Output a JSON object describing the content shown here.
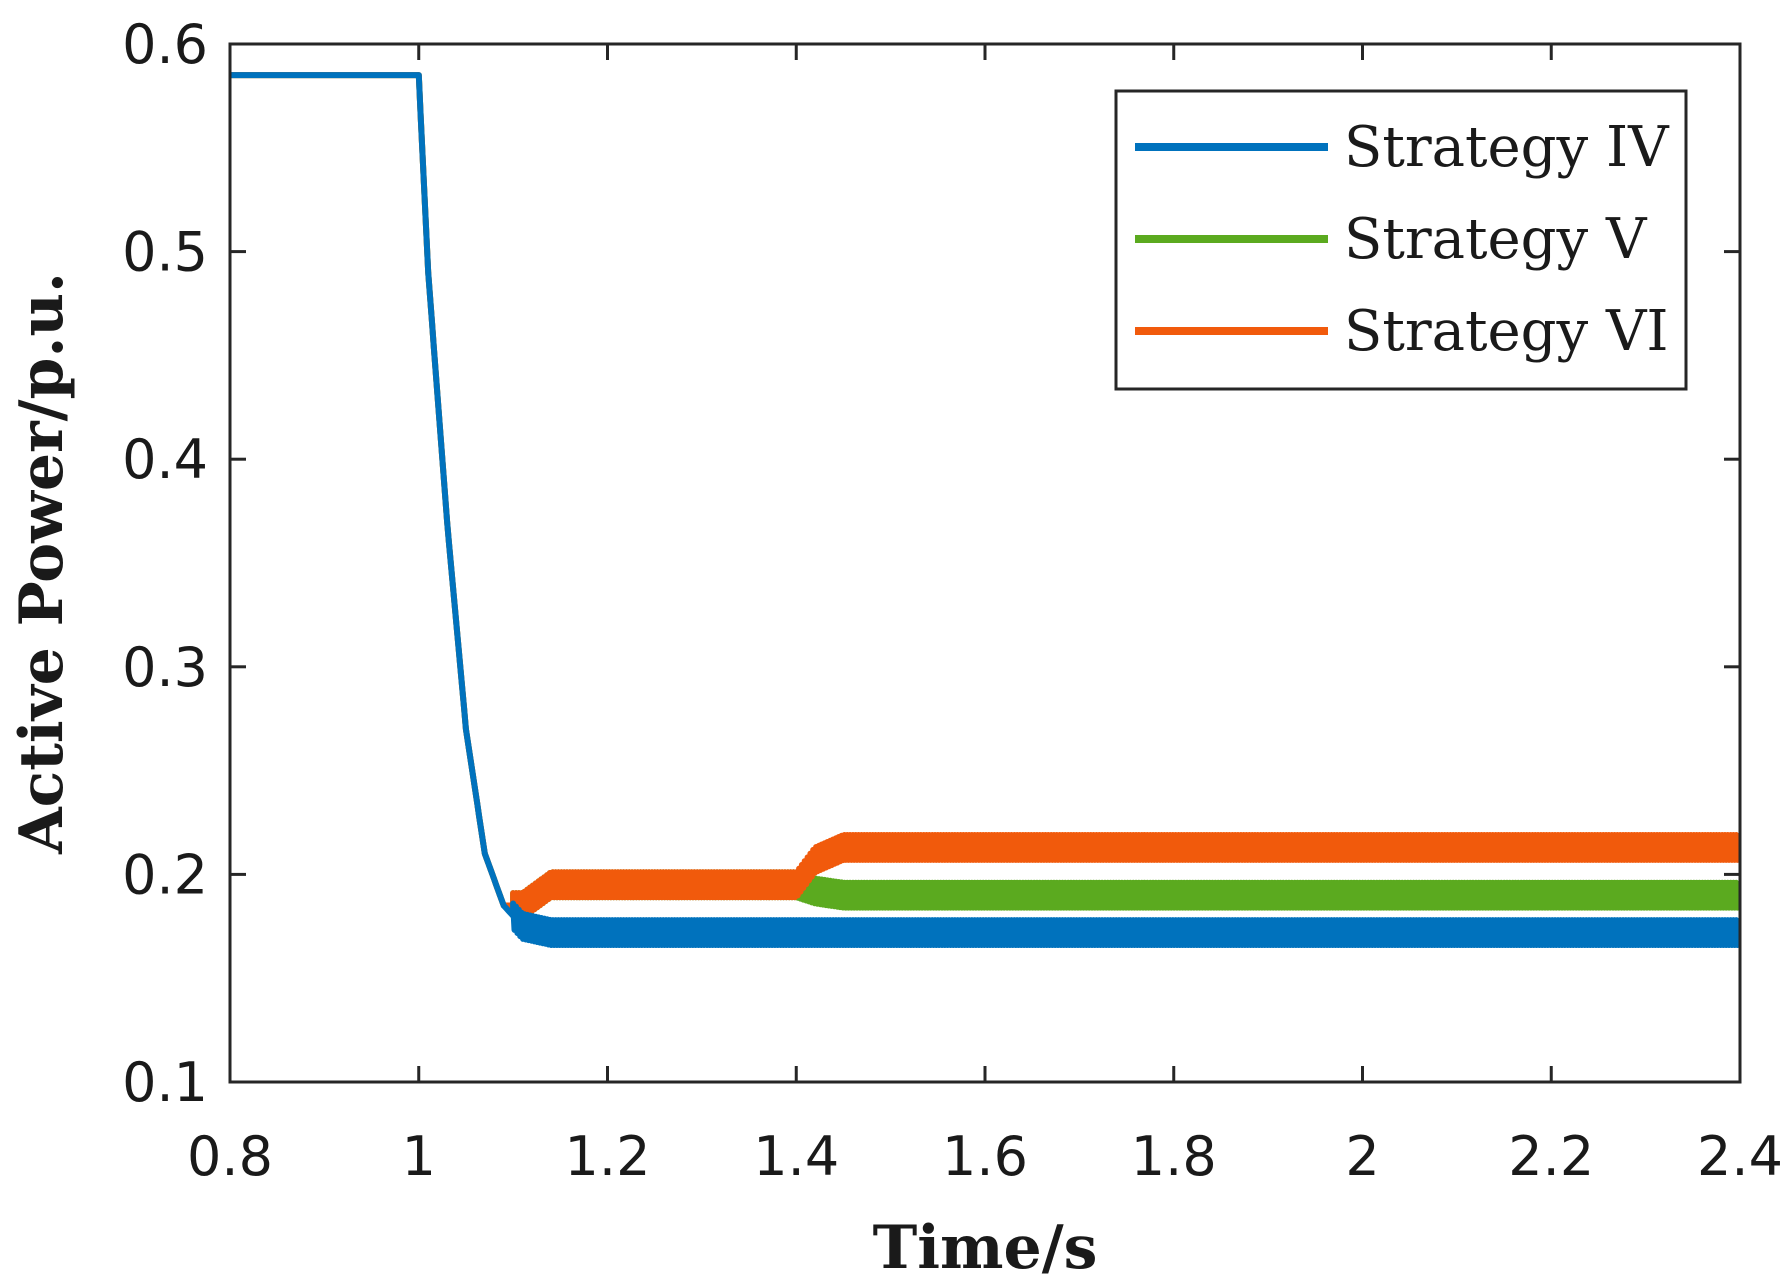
{
  "chart_data": {
    "type": "line",
    "title": "",
    "xlabel": "Time/s",
    "ylabel": "Active Power/p.u.",
    "xlim": [
      0.8,
      2.4
    ],
    "ylim": [
      0.1,
      0.6
    ],
    "xticks": [
      0.8,
      1,
      1.2,
      1.4,
      1.6,
      1.8,
      2,
      2.2,
      2.4
    ],
    "xtick_labels": [
      "0.8",
      "1",
      "1.2",
      "1.4",
      "1.6",
      "1.8",
      "2",
      "2.2",
      "2.4"
    ],
    "yticks": [
      0.1,
      0.2,
      0.3,
      0.4,
      0.5,
      0.6
    ],
    "ytick_labels": [
      "0.1",
      "0.2",
      "0.3",
      "0.4",
      "0.5",
      "0.6"
    ],
    "grid": false,
    "legend_position": "top-right",
    "series": [
      {
        "name": "Strategy IV",
        "color": "#0072BD",
        "x": [
          0.8,
          1.0,
          1.01,
          1.03,
          1.05,
          1.07,
          1.09,
          1.11,
          1.14,
          1.2,
          1.4,
          1.6,
          1.8,
          2.0,
          2.2,
          2.4
        ],
        "y": [
          0.585,
          0.585,
          0.49,
          0.37,
          0.27,
          0.21,
          0.185,
          0.175,
          0.172,
          0.172,
          0.172,
          0.172,
          0.172,
          0.172,
          0.172,
          0.172
        ],
        "oscillation": 0.006
      },
      {
        "name": "Strategy V",
        "color": "#5BAA1F",
        "x": [
          0.8,
          1.0,
          1.01,
          1.03,
          1.05,
          1.07,
          1.09,
          1.11,
          1.14,
          1.2,
          1.4,
          1.42,
          1.45,
          1.6,
          1.8,
          2.0,
          2.2,
          2.4
        ],
        "y": [
          0.585,
          0.585,
          0.49,
          0.37,
          0.27,
          0.21,
          0.185,
          0.185,
          0.195,
          0.195,
          0.195,
          0.192,
          0.19,
          0.19,
          0.19,
          0.19,
          0.19,
          0.19
        ],
        "oscillation": 0.006
      },
      {
        "name": "Strategy VI",
        "color": "#F15A0C",
        "x": [
          0.8,
          1.0,
          1.01,
          1.03,
          1.05,
          1.07,
          1.09,
          1.11,
          1.14,
          1.2,
          1.4,
          1.42,
          1.45,
          1.6,
          1.8,
          2.0,
          2.2,
          2.4
        ],
        "y": [
          0.585,
          0.585,
          0.49,
          0.37,
          0.27,
          0.21,
          0.185,
          0.185,
          0.195,
          0.195,
          0.195,
          0.207,
          0.213,
          0.213,
          0.213,
          0.213,
          0.213,
          0.213
        ],
        "oscillation": 0.006
      }
    ]
  }
}
